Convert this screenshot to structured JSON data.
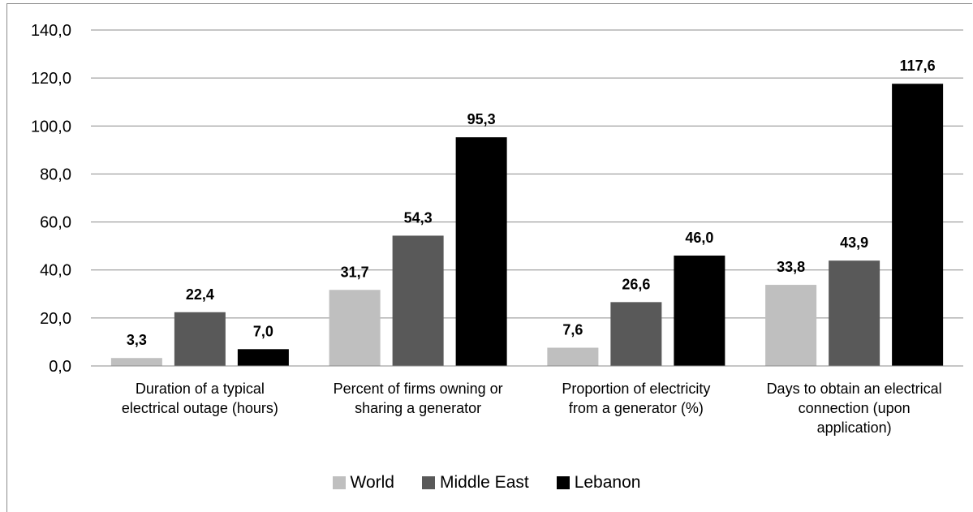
{
  "chart_data": {
    "type": "bar",
    "categories": [
      [
        "Duration of a typical",
        "electrical outage (hours)"
      ],
      [
        "Percent of firms owning or",
        "sharing  a generator"
      ],
      [
        "Proportion of electricity",
        "from a generator (%)"
      ],
      [
        "Days to obtain an electrical",
        "connection (upon",
        "application)"
      ]
    ],
    "series": [
      {
        "name": "World",
        "color": "#bfbfbf",
        "values": [
          3.3,
          31.7,
          7.6,
          33.8
        ],
        "labels": [
          "3,3",
          "31,7",
          "7,6",
          "33,8"
        ]
      },
      {
        "name": "Middle East",
        "color": "#595959",
        "values": [
          22.4,
          54.3,
          26.6,
          43.9
        ],
        "labels": [
          "22,4",
          "54,3",
          "26,6",
          "43,9"
        ]
      },
      {
        "name": "Lebanon",
        "color": "#000000",
        "values": [
          7.0,
          95.3,
          46.0,
          117.6
        ],
        "labels": [
          "7,0",
          "95,3",
          "46,0",
          "117,6"
        ]
      }
    ],
    "ylim": [
      0,
      140
    ],
    "yticks": [
      "0,0",
      "20,0",
      "40,0",
      "60,0",
      "80,0",
      "100,0",
      "120,0",
      "140,0"
    ],
    "grid": true,
    "legend_position": "bottom",
    "title": "",
    "xlabel": "",
    "ylabel": ""
  }
}
